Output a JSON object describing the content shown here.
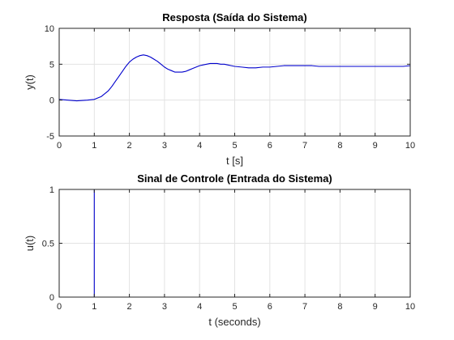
{
  "chart_data": [
    {
      "type": "line",
      "title": "Resposta (Saída do Sistema)",
      "xlabel": "t [s]",
      "ylabel": "y(t)",
      "xlim": [
        0,
        10
      ],
      "ylim": [
        -5,
        10
      ],
      "xticks": [
        0,
        1,
        2,
        3,
        4,
        5,
        6,
        7,
        8,
        9,
        10
      ],
      "yticks": [
        -5,
        0,
        5,
        10
      ],
      "grid": true,
      "color": "#0000cc",
      "series": [
        {
          "x": [
            0,
            0.5,
            0.8,
            1.0,
            1.1,
            1.2,
            1.3,
            1.4,
            1.5,
            1.6,
            1.7,
            1.8,
            1.9,
            2.0,
            2.1,
            2.2,
            2.3,
            2.4,
            2.5,
            2.6,
            2.7,
            2.8,
            2.9,
            3.0,
            3.1,
            3.2,
            3.3,
            3.4,
            3.5,
            3.6,
            3.7,
            3.8,
            3.9,
            4.0,
            4.1,
            4.2,
            4.3,
            4.4,
            4.5,
            4.6,
            4.7,
            4.8,
            4.9,
            5.0,
            5.2,
            5.4,
            5.6,
            5.8,
            6.0,
            6.2,
            6.4,
            6.6,
            6.8,
            7.0,
            7.2,
            7.4,
            7.6,
            7.8,
            8.0,
            8.2,
            8.4,
            8.6,
            8.8,
            9.0,
            9.2,
            9.4,
            9.6,
            9.8,
            10.0
          ],
          "y": [
            0.1,
            -0.1,
            0.0,
            0.1,
            0.3,
            0.5,
            0.9,
            1.3,
            1.9,
            2.6,
            3.3,
            4.0,
            4.7,
            5.3,
            5.7,
            6.0,
            6.2,
            6.3,
            6.2,
            6.0,
            5.7,
            5.4,
            5.0,
            4.6,
            4.3,
            4.1,
            3.9,
            3.9,
            3.9,
            4.0,
            4.2,
            4.4,
            4.6,
            4.8,
            4.9,
            5.0,
            5.1,
            5.1,
            5.1,
            5.0,
            5.0,
            4.9,
            4.8,
            4.7,
            4.6,
            4.5,
            4.5,
            4.6,
            4.6,
            4.7,
            4.8,
            4.8,
            4.8,
            4.8,
            4.8,
            4.7,
            4.7,
            4.7,
            4.7,
            4.7,
            4.7,
            4.7,
            4.7,
            4.7,
            4.7,
            4.7,
            4.7,
            4.7,
            4.8
          ]
        }
      ]
    },
    {
      "type": "line",
      "title": "Sinal de Controle (Entrada do Sistema)",
      "xlabel": "t (seconds)",
      "ylabel": "u(t)",
      "xlim": [
        0,
        10
      ],
      "ylim": [
        0,
        1
      ],
      "xticks": [
        0,
        1,
        2,
        3,
        4,
        5,
        6,
        7,
        8,
        9,
        10
      ],
      "yticks": [
        0,
        0.5,
        1
      ],
      "grid": true,
      "color": "#0000cc",
      "series": [
        {
          "x": [
            0,
            1,
            1,
            10
          ],
          "y": [
            0,
            0,
            1,
            1
          ]
        }
      ]
    }
  ]
}
